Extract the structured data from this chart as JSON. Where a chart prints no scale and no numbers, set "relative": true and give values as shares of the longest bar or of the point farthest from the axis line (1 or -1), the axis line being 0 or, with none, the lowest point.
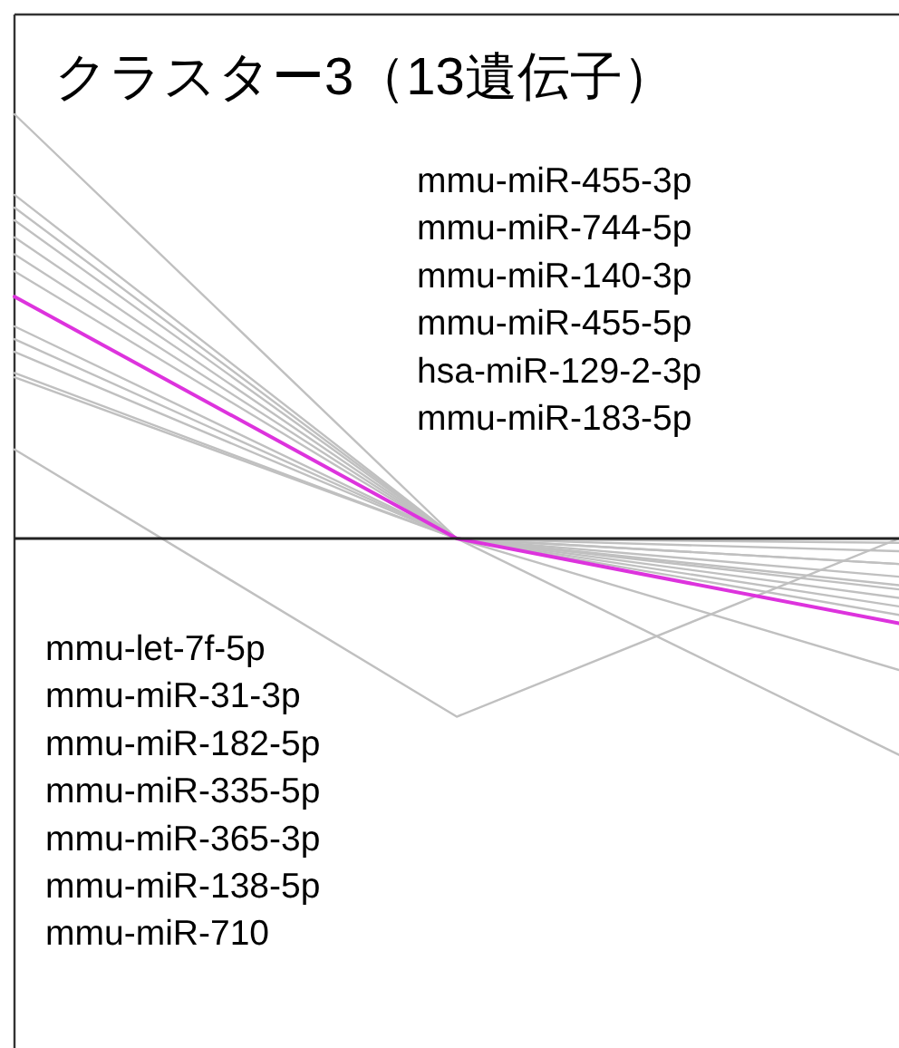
{
  "chart_data": {
    "type": "line",
    "title": "クラスター3（13遺伝子）",
    "relative": true,
    "categories": [
      null,
      null,
      null
    ],
    "marker": "none",
    "line_style": "solid",
    "series": [
      {
        "color": "#c0c0c0",
        "values": [
          1.0,
          0,
          -0.06
        ]
      },
      {
        "color": "#c0c0c0",
        "values": [
          0.81,
          0,
          -0.03
        ]
      },
      {
        "color": "#c0c0c0",
        "values": [
          0.78,
          0,
          -0.09
        ]
      },
      {
        "color": "#c0c0c0",
        "values": [
          0.75,
          0,
          -0.01
        ]
      },
      {
        "color": "#c0c0c0",
        "values": [
          0.71,
          0,
          -0.12
        ]
      },
      {
        "color": "#c0c0c0",
        "values": [
          0.67,
          0,
          -0.14
        ]
      },
      {
        "color": "#c0c0c0",
        "values": [
          0.63,
          0,
          -0.06
        ]
      },
      {
        "color": "#c0c0c0",
        "values": [
          0.5,
          0,
          -0.16
        ]
      },
      {
        "color": "#c0c0c0",
        "values": [
          0.47,
          0,
          -0.18
        ]
      },
      {
        "color": "#c0c0c0",
        "values": [
          0.44,
          0,
          -0.11
        ]
      },
      {
        "color": "#c0c0c0",
        "values": [
          0.39,
          0,
          -0.31
        ]
      },
      {
        "color": "#c0c0c0",
        "values": [
          0.38,
          0,
          -0.51
        ]
      },
      {
        "color": "#c0c0c0",
        "values": [
          0.21,
          -0.42,
          0
        ]
      },
      {
        "color": "#dd33dd",
        "values": [
          0.57,
          0,
          -0.2
        ]
      }
    ],
    "annotations": [
      "mmu-miR-455-3p\nmmu-miR-744-5p\nmmu-miR-140-3p\nmmu-miR-455-5p\nhsa-miR-129-2-3p\nmmu-miR-183-5p",
      "mmu-let-7f-5p\nmmu-miR-31-3p\nmmu-miR-182-5p\nmmu-miR-335-5p\nmmu-miR-365-3p\nmmu-miR-138-5p\nmmu-miR-710"
    ]
  }
}
